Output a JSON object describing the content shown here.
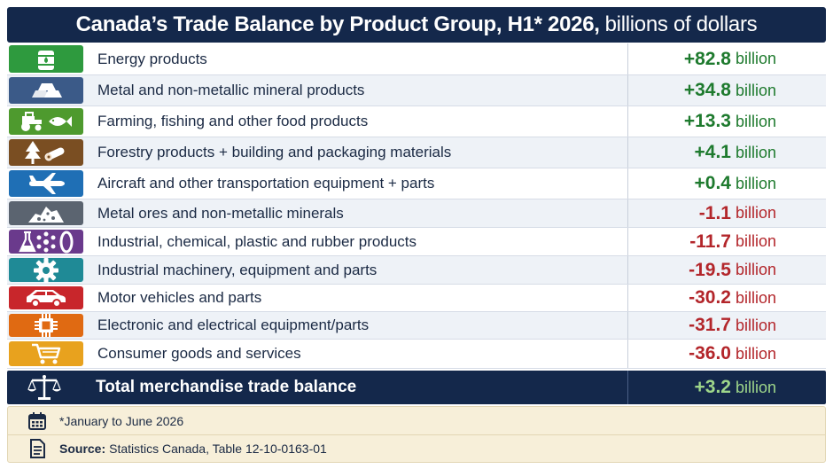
{
  "title": {
    "main": "Canada’s Trade Balance by Product Group, H1* 2026,",
    "sub": "billions of dollars"
  },
  "chart_data": {
    "type": "table",
    "title": "Canada’s Trade Balance by Product Group, H1* 2026, billions of dollars",
    "unit": "billion",
    "rows": [
      {
        "label": "Energy products",
        "display": "+82.8",
        "value": 82.8,
        "color": "#2e9a3e"
      },
      {
        "label": "Metal and non-metallic mineral products",
        "display": "+34.8",
        "value": 34.8,
        "color": "#3b5a88"
      },
      {
        "label": "Farming, fishing and other food products",
        "display": "+13.3",
        "value": 13.3,
        "color": "#4e9a2e"
      },
      {
        "label": "Forestry products + building and packaging materials",
        "display": "+4.1",
        "value": 4.1,
        "color": "#7a4e22"
      },
      {
        "label": "Aircraft and other transportation equipment + parts",
        "display": "+0.4",
        "value": 0.4,
        "color": "#1f6fb5"
      },
      {
        "label": "Metal ores and non-metallic minerals",
        "display": "-1.1",
        "value": -1.1,
        "color": "#5b6470"
      },
      {
        "label": "Industrial, chemical, plastic and rubber products",
        "display": "-11.7",
        "value": -11.7,
        "color": "#6a3a8c"
      },
      {
        "label": "Industrial machinery, equipment and parts",
        "display": "-19.5",
        "value": -19.5,
        "color": "#1f8a96"
      },
      {
        "label": "Motor vehicles and parts",
        "display": "-30.2",
        "value": -30.2,
        "color": "#c8262b"
      },
      {
        "label": "Electronic and electrical equipment/parts",
        "display": "-31.7",
        "value": -31.7,
        "color": "#e06a12"
      },
      {
        "label": "Consumer goods and services",
        "display": "-36.0",
        "value": -36.0,
        "color": "#e8a21e"
      }
    ],
    "total": {
      "label": "Total merchandise trade balance",
      "display": "+3.2",
      "value": 3.2
    }
  },
  "icons": [
    "oil-barrel-icon",
    "metal-ingots-icon",
    "tractor-fish-icon",
    "tree-logs-icon",
    "airplane-icon",
    "ore-pile-icon",
    "chemical-flask-icon",
    "gear-icon",
    "car-icon",
    "microchip-icon",
    "shopping-cart-icon"
  ],
  "footer": {
    "note": "*January to June 2026",
    "source_label": "Source:",
    "source_text": "Statistics Canada, Table 12-10-0163-01"
  },
  "colors": {
    "header_bg": "#14284b",
    "positive": "#1e7a2e",
    "negative": "#b3262b",
    "total_value": "#9ed68a",
    "footer_bg": "#f7efd9"
  }
}
